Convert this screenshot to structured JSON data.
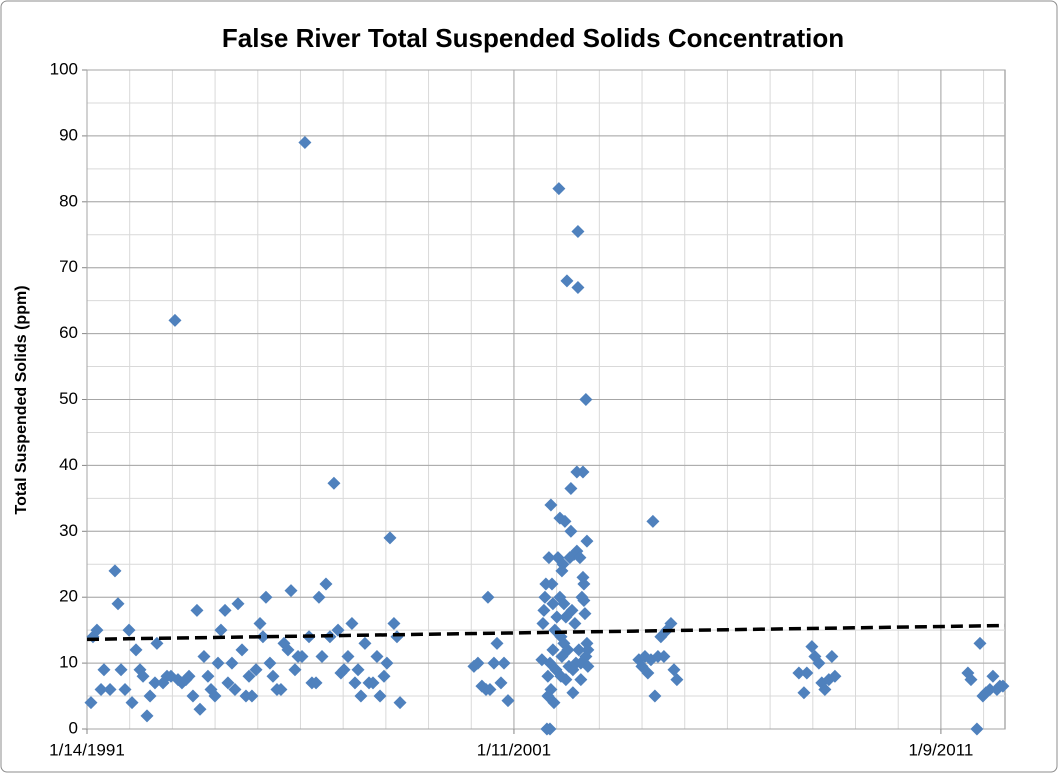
{
  "chart_data": {
    "type": "scatter",
    "title": "False River Total Suspended Solids Concentration",
    "y_label": "Total Suspended Solids (ppm)",
    "color": "#4f81bd",
    "xlim": [
      33252,
      41100
    ],
    "ylim": [
      0,
      100
    ],
    "xticks": [
      {
        "value": 33252,
        "label": "1/14/1991"
      },
      {
        "value": 36902,
        "label": "1/11/2001"
      },
      {
        "value": 40552,
        "label": "1/9/2011"
      }
    ],
    "yticks": [
      0,
      10,
      20,
      30,
      40,
      50,
      60,
      70,
      80,
      90,
      100
    ],
    "x_minor_interval": 365,
    "y_minor_interval": 5,
    "grid": true,
    "trendline": {
      "x": [
        33252,
        41100
      ],
      "values": [
        13.6,
        15.7
      ],
      "color": "#000000",
      "dashed": true
    },
    "x": [
      33286,
      33303,
      33337,
      33372,
      33397,
      33449,
      33491,
      33517,
      33543,
      33577,
      33611,
      33637,
      33671,
      33705,
      33731,
      33765,
      33791,
      33833,
      33850,
      33902,
      33936,
      33970,
      34004,
      34030,
      34064,
      34098,
      34124,
      34158,
      34192,
      34218,
      34252,
      34286,
      34312,
      34346,
      34372,
      34397,
      34432,
      34457,
      34491,
      34517,
      34543,
      34577,
      34611,
      34637,
      34662,
      34697,
      34731,
      34756,
      34782,
      34816,
      34842,
      34876,
      34910,
      34936,
      34970,
      34996,
      35030,
      35056,
      35090,
      35115,
      35150,
      35175,
      35210,
      35235,
      35261,
      35295,
      35329,
      35363,
      35398,
      35423,
      35449,
      35483,
      35517,
      35543,
      35569,
      35594,
      35628,
      35663,
      35697,
      35731,
      35757,
      35791,
      35816,
      35842,
      35876,
      35902,
      35928,
      36560,
      36594,
      36628,
      36663,
      36680,
      36697,
      36731,
      36757,
      36791,
      36817,
      36851,
      37141,
      37150,
      37158,
      37167,
      37175,
      37184,
      37192,
      37192,
      37201,
      37210,
      37210,
      37218,
      37218,
      37227,
      37235,
      37235,
      37244,
      37252,
      37261,
      37269,
      37278,
      37286,
      37295,
      37295,
      37304,
      37304,
      37312,
      37312,
      37321,
      37329,
      37329,
      37338,
      37346,
      37346,
      37355,
      37363,
      37372,
      37380,
      37389,
      37389,
      37398,
      37406,
      37406,
      37415,
      37423,
      37432,
      37440,
      37440,
      37449,
      37449,
      37457,
      37466,
      37474,
      37474,
      37483,
      37492,
      37492,
      37500,
      37500,
      37509,
      37517,
      37517,
      37526,
      37526,
      37534,
      37534,
      37970,
      37996,
      38022,
      38047,
      38073,
      38090,
      38107,
      38133,
      38158,
      38184,
      38210,
      38244,
      38270,
      38295,
      39338,
      39381,
      39406,
      39449,
      39475,
      39509,
      39534,
      39560,
      39594,
      39620,
      39646,
      40783,
      40809,
      40860,
      40886,
      40911,
      40937,
      40971,
      40997,
      41031,
      41056,
      41082
    ],
    "values": [
      4,
      14,
      15,
      6,
      9,
      6,
      24,
      19,
      9,
      6,
      15,
      4,
      12,
      9,
      8,
      2,
      5,
      7,
      13,
      7,
      8,
      8,
      62,
      7.5,
      7,
      7.5,
      8,
      5,
      18,
      3,
      11,
      8,
      6,
      5,
      10,
      15,
      18,
      7,
      10,
      6,
      19,
      12,
      5,
      8,
      5,
      9,
      16,
      14,
      20,
      10,
      8,
      6,
      6,
      13,
      12,
      21,
      9,
      11,
      11,
      89,
      14,
      7,
      7,
      20,
      11,
      22,
      14,
      37.3,
      15,
      8.5,
      9,
      11,
      16,
      7,
      9,
      5,
      13,
      7,
      7,
      11,
      5,
      8,
      10,
      29,
      16,
      14,
      4,
      9.5,
      10,
      6.5,
      6,
      20,
      6,
      10,
      13,
      7,
      10,
      4.3,
      10.5,
      16,
      18,
      20,
      22,
      0,
      8,
      5,
      26,
      0,
      10,
      34,
      6,
      22,
      12,
      19,
      4,
      15,
      9,
      17,
      26,
      82,
      32,
      20,
      14,
      8,
      11,
      24,
      25,
      19,
      13,
      31.5,
      17,
      7.5,
      68,
      12,
      9.5,
      26,
      36.5,
      30,
      18,
      9,
      5.5,
      26.5,
      16,
      10,
      27,
      39,
      75.5,
      67,
      12,
      26,
      10,
      7.5,
      20,
      39,
      23,
      22,
      19.5,
      17.5,
      50,
      11,
      28.5,
      13,
      9.5,
      12,
      10.5,
      9.5,
      11,
      8.5,
      10.5,
      31.5,
      5,
      11,
      14,
      11,
      15,
      16,
      9,
      7.5,
      8.5,
      5.5,
      8.5,
      12.5,
      11,
      10,
      7,
      6,
      7.5,
      11,
      8,
      8.5,
      7.5,
      0,
      13,
      5,
      5.5,
      6,
      8,
      6,
      6.5,
      6.5
    ]
  }
}
